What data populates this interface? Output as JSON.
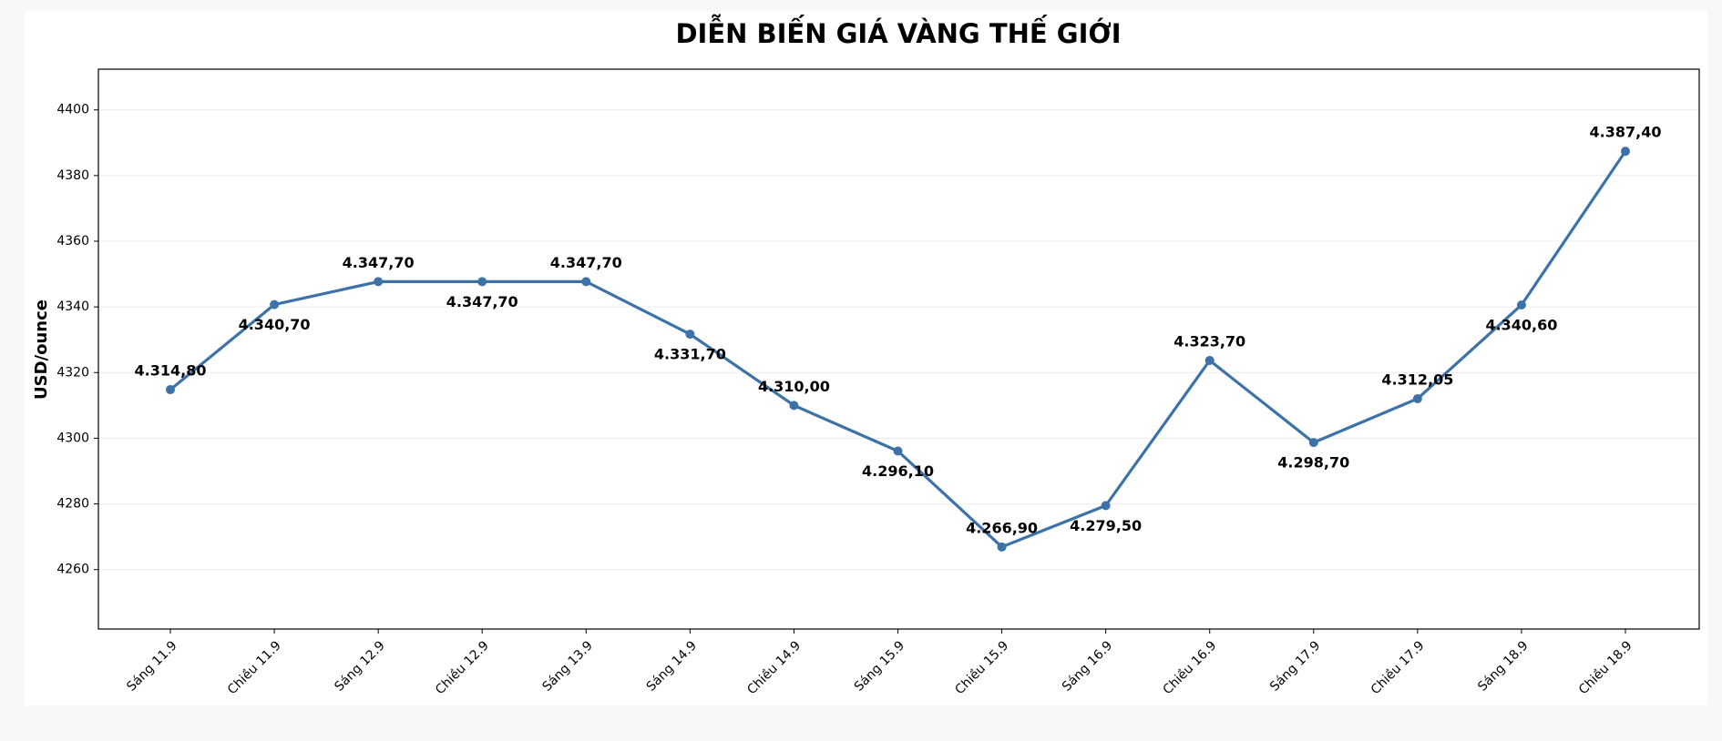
{
  "chart_data": {
    "type": "line",
    "title": "DIỄN BIẾN GIÁ VÀNG THẾ GIỚI",
    "y_label": "USD/ounce",
    "categories": [
      "Sáng 11.9",
      "Chiều 11.9",
      "Sáng 12.9",
      "Chiều 12.9",
      "Sáng 13.9",
      "Sáng 14.9",
      "Chiều 14.9",
      "Sáng 15.9",
      "Chiều 15.9",
      "Sáng 16.9",
      "Chiều 16.9",
      "Sáng 17.9",
      "Chiều 17.9",
      "Sáng 18.9",
      "Chiều 18.9"
    ],
    "series": [
      {
        "name": "Giá vàng",
        "color": "#3c72a8",
        "values": [
          4314.8,
          4340.7,
          4347.7,
          4347.7,
          4347.7,
          4331.7,
          4310.0,
          4296.1,
          4266.9,
          4279.5,
          4323.7,
          4298.7,
          4312.05,
          4340.6,
          4387.4
        ],
        "value_labels": [
          "4.314,80",
          "4.340,70",
          "4.347,70",
          "4.347,70",
          "4.347,70",
          "4.331,70",
          "4.310,00",
          "4.296,10",
          "4.266,90",
          "4.279,50",
          "4.323,70",
          "4.298,70",
          "4.312,05",
          "4.340,60",
          "4.387,40"
        ]
      }
    ],
    "ylim": [
      4241.9,
      4412.4
    ],
    "yticks": [
      4260,
      4280,
      4300,
      4320,
      4340,
      4360,
      4380,
      4400
    ],
    "grid": true
  }
}
